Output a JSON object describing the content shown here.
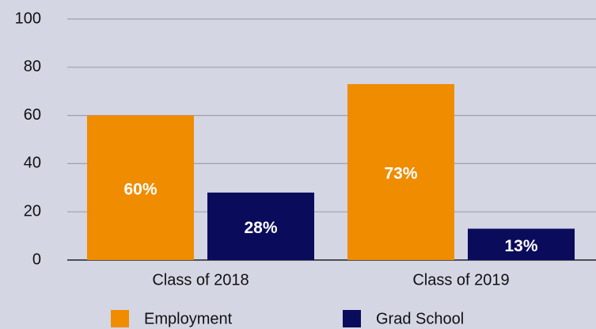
{
  "chart_data": {
    "type": "bar",
    "categories": [
      "Class of 2018",
      "Class of 2019"
    ],
    "series": [
      {
        "name": "Employment",
        "color": "#f08c00",
        "values": [
          60,
          73
        ],
        "value_labels": [
          "60%",
          "73%"
        ]
      },
      {
        "name": "Grad School",
        "color": "#0b0b5c",
        "values": [
          28,
          13
        ],
        "value_labels": [
          "28%",
          "13%"
        ]
      }
    ],
    "ylim": [
      0,
      100
    ],
    "yticks": [
      0,
      20,
      40,
      60,
      80,
      100
    ],
    "grid": true,
    "legend": "bottom"
  }
}
